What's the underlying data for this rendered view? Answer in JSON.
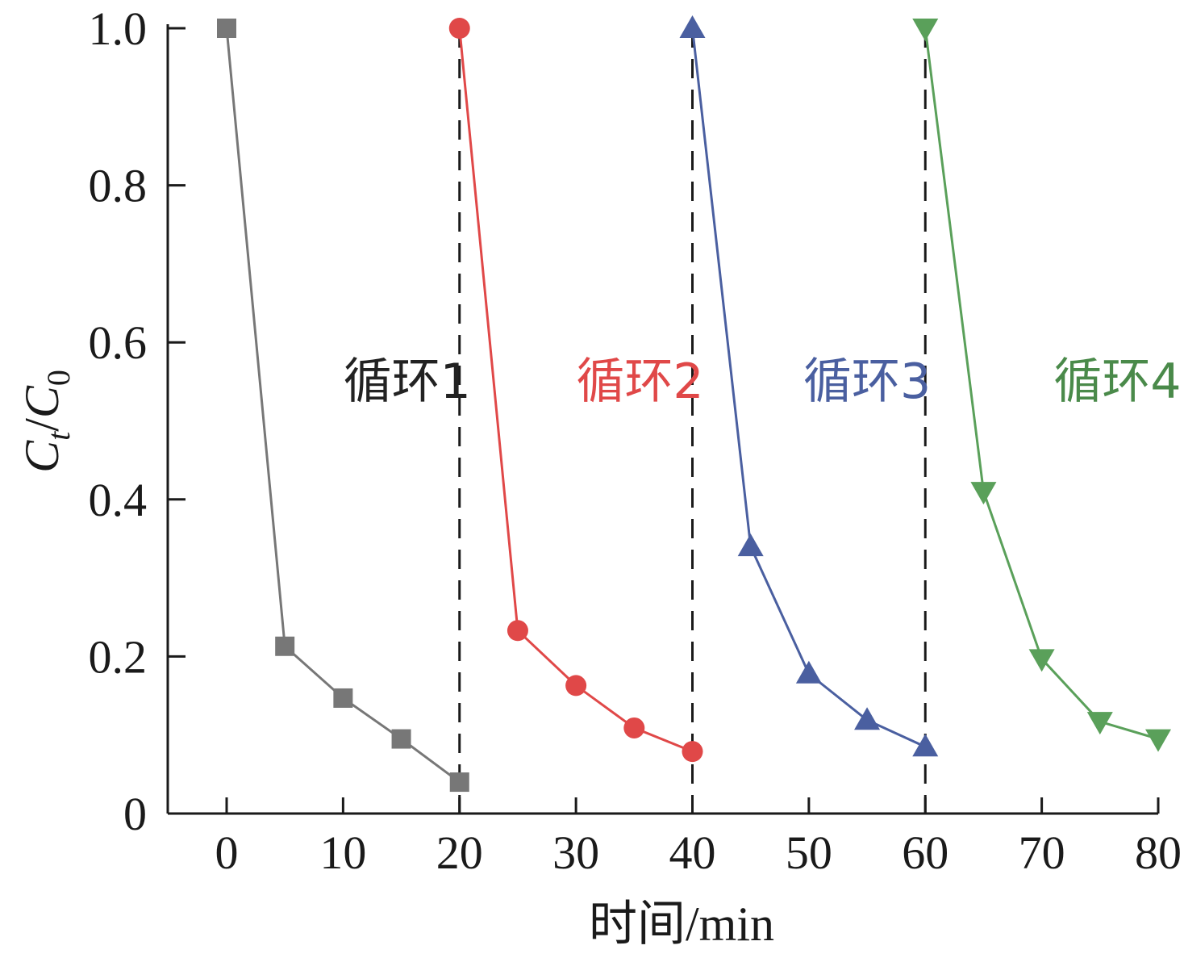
{
  "chart_data": {
    "type": "line",
    "xlabel": "时间/min",
    "ylabel": {
      "main": "C",
      "sub_t": "t",
      "slash": "/",
      "main2": "C",
      "sub_0": "0"
    },
    "xlim": [
      -5,
      80
    ],
    "ylim": [
      0,
      1.0
    ],
    "x_ticks": [
      0,
      10,
      20,
      30,
      40,
      50,
      60,
      70,
      80
    ],
    "x_tick_labels": [
      "0",
      "10",
      "20",
      "30",
      "40",
      "50",
      "60",
      "70",
      "80"
    ],
    "y_ticks": [
      0,
      0.2,
      0.4,
      0.6,
      0.8,
      1.0
    ],
    "y_tick_labels": [
      "0",
      "0.2",
      "0.4",
      "0.6",
      "0.8",
      "1.0"
    ],
    "vlines": [
      20,
      40,
      60
    ],
    "grid": false,
    "legend": "none",
    "series": [
      {
        "name": "循环1",
        "marker": "square",
        "color": "#777777",
        "label_color": "#222222",
        "label_pos": [
          15.5,
          0.55
        ],
        "x": [
          0,
          5,
          10,
          15,
          20
        ],
        "y": [
          1.0,
          0.213,
          0.147,
          0.095,
          0.04
        ]
      },
      {
        "name": "循环2",
        "marker": "circle",
        "color": "#e04848",
        "label_color": "#e04848",
        "label_pos": [
          35.5,
          0.55
        ],
        "x": [
          20,
          25,
          30,
          35,
          40
        ],
        "y": [
          1.0,
          0.233,
          0.163,
          0.109,
          0.079
        ]
      },
      {
        "name": "循环3",
        "marker": "triangle-up",
        "color": "#4a5fa0",
        "label_color": "#4a5fa0",
        "label_pos": [
          55,
          0.55
        ],
        "x": [
          40,
          45,
          50,
          55,
          60
        ],
        "y": [
          1.0,
          0.34,
          0.178,
          0.119,
          0.085
        ]
      },
      {
        "name": "循环4",
        "marker": "triangle-down",
        "color": "#5aa05a",
        "label_color": "#4a8a4a",
        "label_pos": [
          76.5,
          0.55
        ],
        "x": [
          60,
          65,
          70,
          75,
          80
        ],
        "y": [
          1.0,
          0.41,
          0.197,
          0.117,
          0.095
        ]
      }
    ]
  }
}
